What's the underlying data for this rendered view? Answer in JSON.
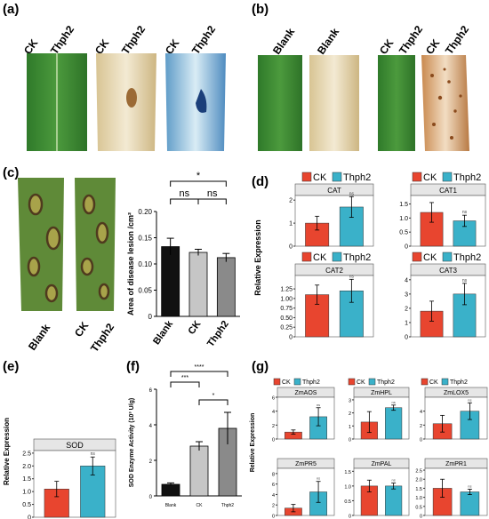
{
  "panels": {
    "a": {
      "label": "(a)",
      "leaf_labels": [
        [
          "CK",
          "Thph2"
        ],
        [
          "CK",
          "Thph2"
        ],
        [
          "CK",
          "Thph2"
        ]
      ]
    },
    "b": {
      "label": "(b)",
      "leaf_labels": [
        [
          "Blank",
          "Blank"
        ],
        [
          "CK",
          "Thph2"
        ],
        [
          "CK",
          "Thph2"
        ]
      ]
    },
    "c": {
      "label": "(c)",
      "leaf_labels": [
        "Blank",
        "CK",
        "Thph2"
      ]
    },
    "d": {
      "label": "(d)"
    },
    "e": {
      "label": "(e)"
    },
    "f": {
      "label": "(f)"
    },
    "g": {
      "label": "(g)"
    }
  },
  "colors": {
    "ck": "#e8452f",
    "thph2": "#3ab1c9",
    "blank": "#111111",
    "ck_grey": "#c6c6c6",
    "thph2_grey": "#8a8a8a",
    "facet_header": "#e6e6e6"
  },
  "legend": {
    "ck": "CK",
    "thph2": "Thph2"
  },
  "chart_data": [
    {
      "id": "c",
      "type": "bar",
      "ylabel": "Area of disease lesion /cm²",
      "categories": [
        "Blank",
        "CK",
        "Thph2"
      ],
      "values": [
        0.133,
        0.122,
        0.112
      ],
      "errors": [
        0.016,
        0.006,
        0.008
      ],
      "ylim": [
        0,
        0.2
      ],
      "yticks": [
        "0",
        "0.05",
        "0.10",
        "0.15",
        "0.20"
      ],
      "significance": [
        {
          "from": 0,
          "to": 1,
          "label": "ns"
        },
        {
          "from": 1,
          "to": 2,
          "label": "ns"
        },
        {
          "from": 0,
          "to": 2,
          "label": "*"
        }
      ]
    },
    {
      "id": "d",
      "type": "bar",
      "ylabel": "Relative Expression",
      "facets": [
        {
          "title": "CAT",
          "values": [
            1.0,
            1.7
          ],
          "errors": [
            0.3,
            0.45
          ],
          "ylim": [
            0,
            2.2
          ],
          "yticks": [
            0,
            1,
            2
          ],
          "sig": "ns"
        },
        {
          "title": "CAT1",
          "values": [
            1.2,
            0.9
          ],
          "errors": [
            0.35,
            0.2
          ],
          "ylim": [
            0,
            1.8
          ],
          "yticks": [
            0,
            0.5,
            1.0,
            1.5
          ],
          "yticklabels": [
            "0",
            "0.5",
            "1.0",
            "1.5"
          ],
          "sig": "ns"
        },
        {
          "title": "CAT2",
          "values": [
            1.1,
            1.2
          ],
          "errors": [
            0.25,
            0.3
          ],
          "ylim": [
            0,
            1.6
          ],
          "yticks": [
            0,
            0.25,
            0.5,
            0.75,
            1.0,
            1.25
          ],
          "yticklabels": [
            "0",
            "0.25",
            "0.50",
            "0.75",
            "1.00",
            "1.25"
          ],
          "sig": "ns"
        },
        {
          "title": "CAT3",
          "values": [
            1.8,
            3.0
          ],
          "errors": [
            0.7,
            0.75
          ],
          "ylim": [
            0,
            4.3
          ],
          "yticks": [
            0,
            1,
            2,
            3,
            4
          ],
          "sig": "ns"
        }
      ]
    },
    {
      "id": "e",
      "type": "bar",
      "ylabel": "Relative Expression",
      "facets": [
        {
          "title": "SOD",
          "values": [
            1.1,
            2.0
          ],
          "errors": [
            0.3,
            0.35
          ],
          "ylim": [
            0,
            2.6
          ],
          "yticks": [
            0,
            0.5,
            1.0,
            1.5,
            2.0,
            2.5
          ],
          "yticklabels": [
            "0",
            "0.5",
            "1.0",
            "1.5",
            "2.0",
            "2.5"
          ],
          "sig": "ns"
        }
      ]
    },
    {
      "id": "f",
      "type": "bar",
      "ylabel": "SOD Enzyme Activity (10³ U/g)",
      "categories": [
        "Blank",
        "CK",
        "Thph2"
      ],
      "values": [
        0.65,
        2.8,
        3.8
      ],
      "errors": [
        0.08,
        0.25,
        0.9
      ],
      "ylim": [
        0,
        6
      ],
      "yticks": [
        "0",
        "2",
        "4",
        "6"
      ],
      "significance": [
        {
          "from": 0,
          "to": 1,
          "label": "***"
        },
        {
          "from": 1,
          "to": 2,
          "label": "*"
        },
        {
          "from": 0,
          "to": 2,
          "label": "****"
        }
      ]
    },
    {
      "id": "g",
      "type": "bar",
      "ylabel": "Relative Expression",
      "facets": [
        {
          "title": "ZmAOS",
          "values": [
            1.0,
            3.2
          ],
          "errors": [
            0.3,
            1.3
          ],
          "ylim": [
            0,
            6
          ],
          "yticks": [
            0,
            2,
            4,
            6
          ],
          "sig": "ns"
        },
        {
          "title": "ZmHPL",
          "values": [
            1.3,
            2.4
          ],
          "errors": [
            0.8,
            0.2
          ],
          "ylim": [
            0,
            3.2
          ],
          "yticks": [
            0,
            1,
            2,
            3
          ],
          "sig": "ns"
        },
        {
          "title": "ZmLOX5",
          "values": [
            2.2,
            4.0
          ],
          "errors": [
            1.2,
            1.2
          ],
          "ylim": [
            0,
            6
          ],
          "yticks": [
            0,
            2,
            4
          ],
          "sig": "ns"
        },
        {
          "title": "ZmPR5",
          "values": [
            1.4,
            4.5
          ],
          "errors": [
            0.7,
            2.0
          ],
          "ylim": [
            0,
            9
          ],
          "yticks": [
            0,
            2,
            4,
            6,
            8
          ],
          "sig": "ns"
        },
        {
          "title": "ZmPAL",
          "values": [
            1.0,
            1.0
          ],
          "errors": [
            0.2,
            0.1
          ],
          "ylim": [
            0,
            1.6
          ],
          "yticks": [
            0,
            0.5,
            1.0,
            1.5
          ],
          "yticklabels": [
            "0",
            "0.5",
            "1.0",
            "1.5"
          ],
          "sig": "ns"
        },
        {
          "title": "ZmPR1",
          "values": [
            1.5,
            1.3
          ],
          "errors": [
            0.5,
            0.15
          ],
          "ylim": [
            0,
            2.6
          ],
          "yticks": [
            0,
            0.5,
            1.0,
            1.5,
            2.0,
            2.5
          ],
          "yticklabels": [
            "0",
            "0.5",
            "1.0",
            "1.5",
            "2.0",
            "2.5"
          ],
          "sig": "ns"
        }
      ]
    }
  ]
}
